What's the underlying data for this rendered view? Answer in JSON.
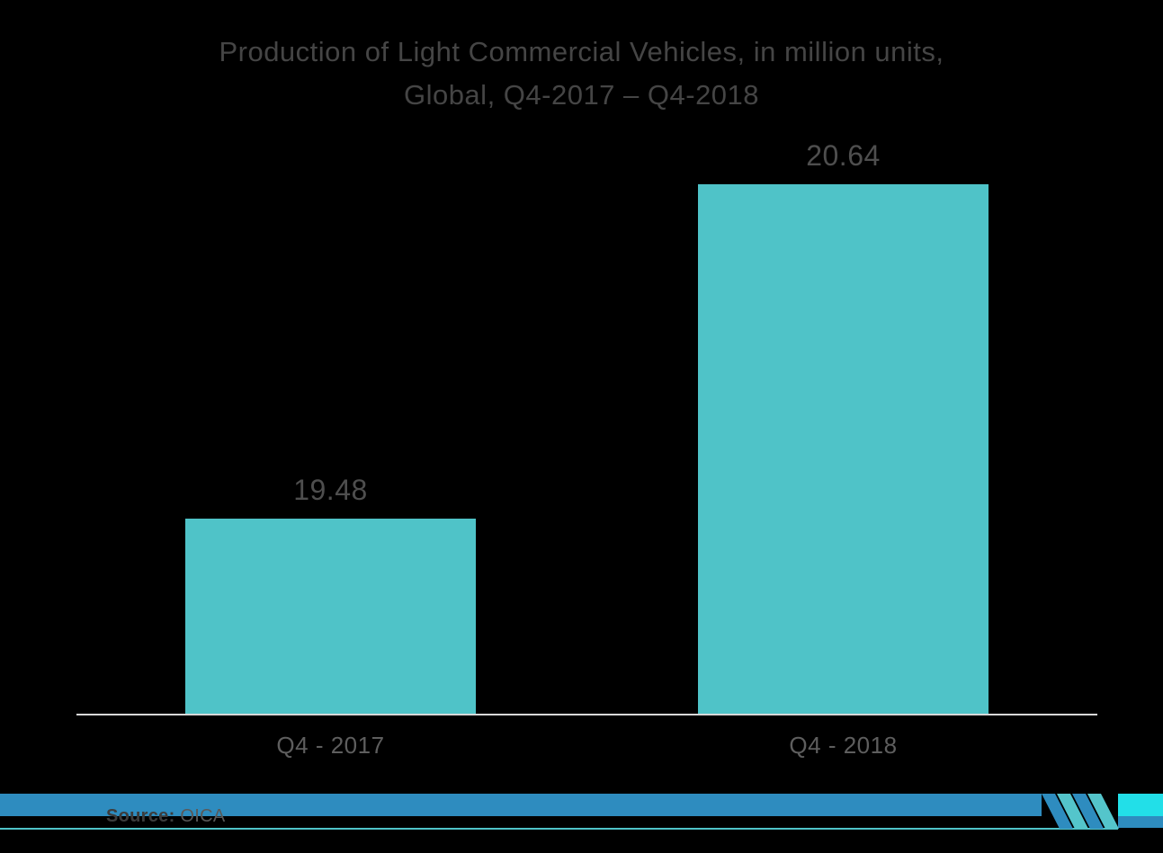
{
  "header": {
    "title_line1": "Production of Light Commercial Vehicles, in million units,",
    "title_line2": "Global, Q4-2017 – Q4-2018"
  },
  "chart_data": {
    "type": "bar",
    "title": "Production of Light Commercial Vehicles, in million units, Global, Q4-2017 – Q4-2018",
    "categories": [
      "Q4 - 2017",
      "Q4 - 2018"
    ],
    "values": [
      19.48,
      20.64
    ],
    "value_labels": [
      "19.48",
      "20.64"
    ],
    "xlabel": "",
    "ylabel": "",
    "ylim": [
      18.8,
      20.64
    ],
    "grid": false,
    "legend": "none",
    "bar_color": "#4FC3C8"
  },
  "footer": {
    "source_label": "Source:",
    "source_value": " OICA",
    "band_color": "#2E8CBF",
    "accent_line_color": "#4FC3C8",
    "corner_color": "#22DFE8",
    "logo": "mordor-intelligence-logo"
  },
  "colors": {
    "background": "#000000",
    "title_text": "#454545",
    "value_text": "#4E4E4E",
    "axis_text": "#5E5E5E",
    "axis_line": "#D8D8D8"
  }
}
